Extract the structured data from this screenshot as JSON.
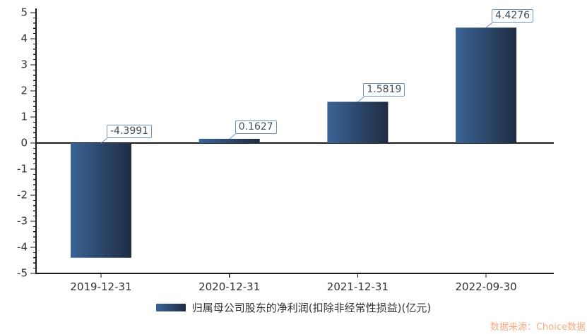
{
  "chart_data": {
    "type": "bar",
    "title": "",
    "categories": [
      "2019-12-31",
      "2020-12-31",
      "2021-12-31",
      "2022-09-30"
    ],
    "values": [
      -4.3991,
      0.1627,
      1.5819,
      4.4276
    ],
    "value_labels": [
      "-4.3991",
      "0.1627",
      "1.5819",
      "4.4276"
    ],
    "series_name": "归属母公司股东的净利润(扣除非经常性损益)(亿元)",
    "xlabel": "",
    "ylabel": "",
    "ylim": [
      -5,
      5
    ],
    "y_major_step": 1,
    "y_minor_step": 0.2,
    "y_tick_labels": [
      "-5",
      "-4",
      "-3",
      "-2",
      "-1",
      "0",
      "1",
      "2",
      "3",
      "4",
      "5"
    ],
    "grid": false,
    "legend_position": "bottom",
    "colors": {
      "bar_gradient_left": "#3a6496",
      "bar_gradient_right": "#1f2c42",
      "axis": "#1a1a1a",
      "tick_label": "#333333",
      "value_box_border": "#6e94bd",
      "value_text": "#3f4d5d"
    }
  },
  "legend": {
    "label": "归属母公司股东的净利润(扣除非经常性损益)(亿元)"
  },
  "footer": {
    "source_text": "数据来源：Choice数据",
    "source_color": "#f8ab81"
  }
}
